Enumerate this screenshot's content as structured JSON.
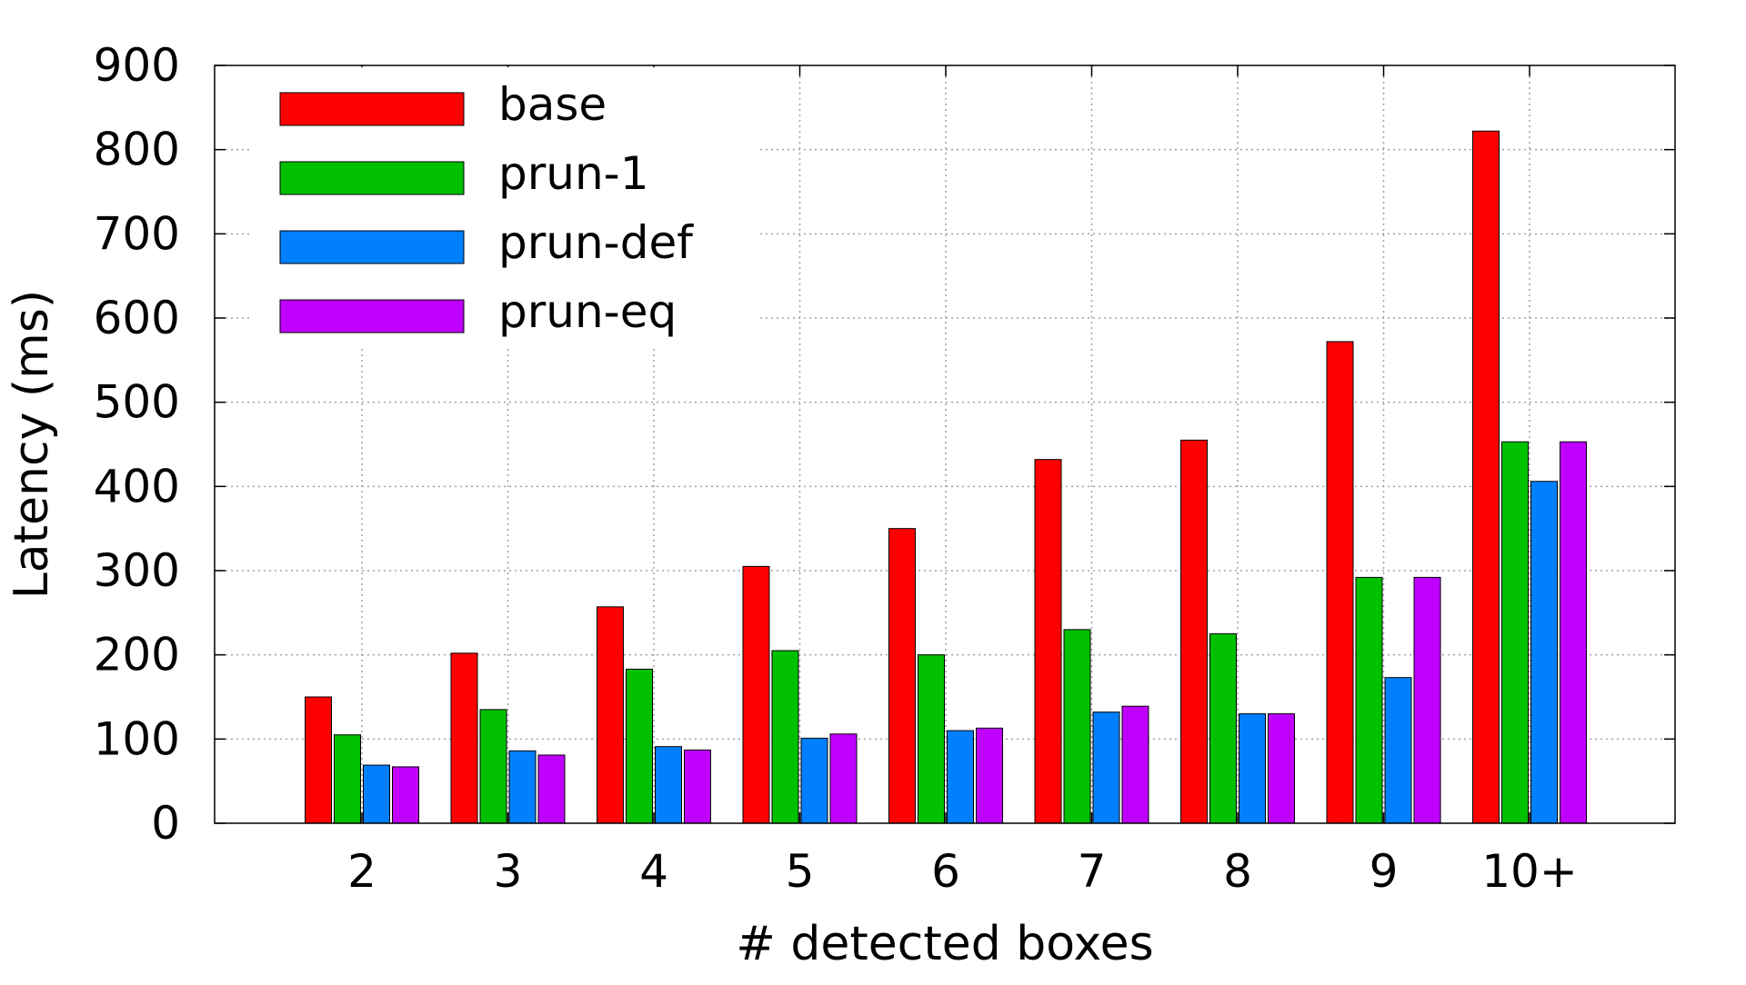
{
  "chart_data": {
    "type": "bar",
    "title": "",
    "xlabel": "# detected boxes",
    "ylabel": "Latency (ms)",
    "ylim": [
      0,
      900
    ],
    "yticks": [
      0,
      100,
      200,
      300,
      400,
      500,
      600,
      700,
      800,
      900
    ],
    "grid": true,
    "legend_position": "top-left",
    "categories": [
      "2",
      "3",
      "4",
      "5",
      "6",
      "7",
      "8",
      "9",
      "10+"
    ],
    "series": [
      {
        "name": "base",
        "color": "#ff0000",
        "values": [
          150,
          202,
          257,
          305,
          350,
          432,
          455,
          572,
          822
        ]
      },
      {
        "name": "prun-1",
        "color": "#00c000",
        "values": [
          105,
          135,
          183,
          205,
          200,
          230,
          225,
          292,
          453
        ]
      },
      {
        "name": "prun-def",
        "color": "#0080ff",
        "values": [
          69,
          86,
          91,
          101,
          110,
          132,
          130,
          173,
          406
        ]
      },
      {
        "name": "prun-eq",
        "color": "#c000ff",
        "values": [
          67,
          81,
          87,
          106,
          113,
          139,
          130,
          292,
          453
        ]
      }
    ]
  }
}
